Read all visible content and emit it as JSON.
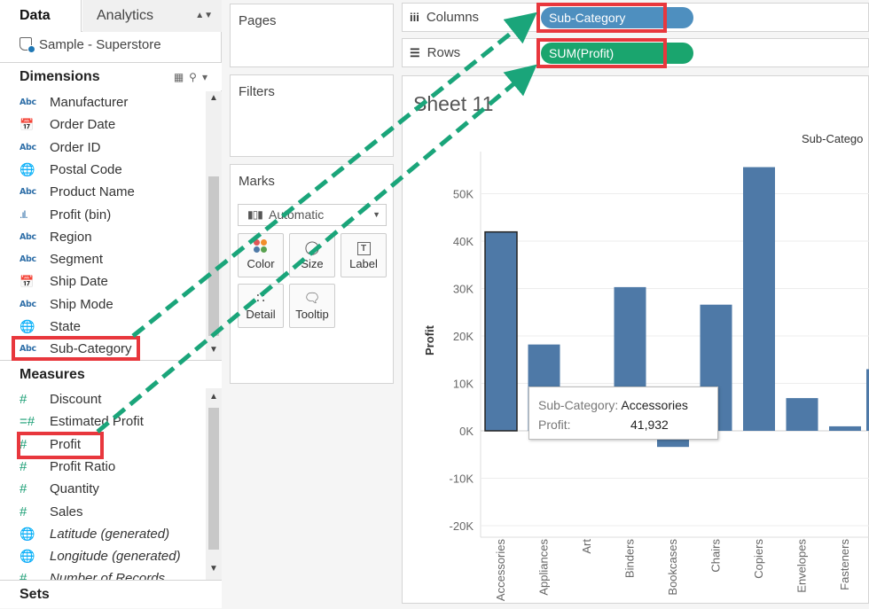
{
  "data_pane": {
    "tab_data": "Data",
    "tab_analytics": "Analytics",
    "datasource": "Sample - Superstore",
    "dimensions_title": "Dimensions",
    "dimensions": [
      {
        "label": "Manufacturer",
        "icon": "Abc",
        "type": "string"
      },
      {
        "label": "Order Date",
        "icon": "calendar-icon",
        "type": "date"
      },
      {
        "label": "Order ID",
        "icon": "Abc",
        "type": "string"
      },
      {
        "label": "Postal Code",
        "icon": "globe-icon",
        "type": "geo"
      },
      {
        "label": "Product Name",
        "icon": "Abc",
        "type": "string"
      },
      {
        "label": "Profit (bin)",
        "icon": "bin-icon",
        "type": "bin"
      },
      {
        "label": "Region",
        "icon": "Abc",
        "type": "string"
      },
      {
        "label": "Segment",
        "icon": "Abc",
        "type": "string"
      },
      {
        "label": "Ship Date",
        "icon": "calendar-icon",
        "type": "date"
      },
      {
        "label": "Ship Mode",
        "icon": "Abc",
        "type": "string"
      },
      {
        "label": "State",
        "icon": "globe-icon",
        "type": "geo"
      },
      {
        "label": "Sub-Category",
        "icon": "Abc",
        "type": "string"
      }
    ],
    "measures_title": "Measures",
    "measures": [
      {
        "label": "Discount",
        "icon": "#"
      },
      {
        "label": "Estimated Profit",
        "icon": "=#"
      },
      {
        "label": "Profit",
        "icon": "#"
      },
      {
        "label": "Profit Ratio",
        "icon": "#"
      },
      {
        "label": "Quantity",
        "icon": "#"
      },
      {
        "label": "Sales",
        "icon": "#"
      },
      {
        "label": "Latitude (generated)",
        "icon": "globe-icon"
      },
      {
        "label": "Longitude (generated)",
        "icon": "globe-icon"
      },
      {
        "label": "Number of Records",
        "icon": "#"
      }
    ],
    "sets_title": "Sets"
  },
  "cards": {
    "pages": "Pages",
    "filters": "Filters",
    "marks": "Marks",
    "mark_type": "Automatic",
    "buttons": {
      "color": "Color",
      "size": "Size",
      "label": "Label",
      "detail": "Detail",
      "tooltip": "Tooltip"
    }
  },
  "shelves": {
    "columns_label": "Columns",
    "rows_label": "Rows",
    "columns_pill": "Sub-Category",
    "rows_pill": "SUM(Profit)"
  },
  "view": {
    "sheet_title": "Sheet 11",
    "header": "Sub-Catego"
  },
  "tooltip": {
    "key1": "Sub-Category:",
    "val1": "Accessories",
    "key2": "Profit:",
    "val2": "41,932"
  },
  "colors": {
    "bar": "#4e79a7",
    "pill_dimension": "#4e8fbf",
    "pill_measure": "#1aa56e",
    "highlight": "#e8373d",
    "arrow": "#1aa57a"
  },
  "chart_data": {
    "type": "bar",
    "title": "",
    "column_header": "Sub-Catego",
    "xlabel": "",
    "ylabel": "Profit",
    "categories": [
      "Accessories",
      "Appliances",
      "Art",
      "Binders",
      "Bookcases",
      "Chairs",
      "Copiers",
      "Envelopes",
      "Fasteners"
    ],
    "values": [
      41932,
      18200,
      0,
      30300,
      -3400,
      26600,
      55600,
      6900,
      950
    ],
    "ylim": [
      -21000,
      61000
    ],
    "yticks": [
      -20000,
      -10000,
      0,
      10000,
      20000,
      30000,
      40000,
      50000
    ],
    "ytick_labels": [
      "-20K",
      "-10K",
      "0K",
      "10K",
      "20K",
      "30K",
      "40K",
      "50K"
    ],
    "grid": true,
    "selected": "Accessories"
  }
}
